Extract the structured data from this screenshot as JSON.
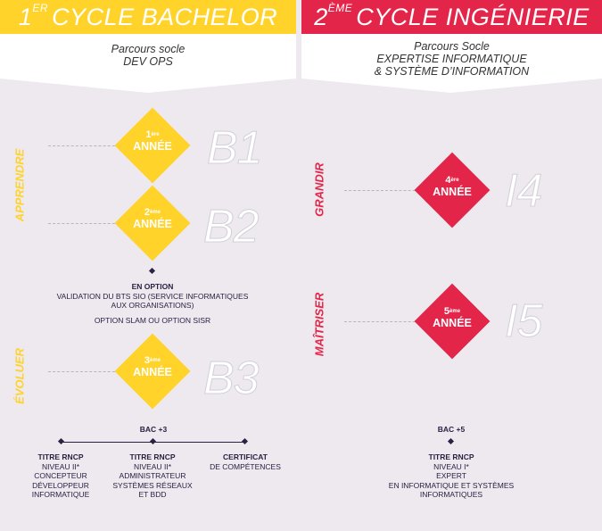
{
  "colors": {
    "yellow": "#ffd32a",
    "red": "#e4254a",
    "navy": "#2a2144",
    "bg": "#ede9ee"
  },
  "left": {
    "head_num": "1",
    "head_sup": "ER",
    "head_title": "CYCLE BACHELOR",
    "sub_l1": "Parcours socle",
    "sub_l2": "DEV OPS",
    "side_top": "APPRENDRE",
    "side_bottom": "ÉVOLUER",
    "years": [
      {
        "num": "1",
        "sup": "ère",
        "label": "ANNÉE",
        "big": "B1"
      },
      {
        "num": "2",
        "sup": "ème",
        "label": "ANNÉE",
        "big": "B2"
      },
      {
        "num": "3",
        "sup": "ème",
        "label": "ANNÉE",
        "big": "B3"
      }
    ],
    "option_title": "EN OPTION",
    "option_line1": "VALIDATION DU BTS SIO (SERVICE INFORMATIQUES",
    "option_line2": "AUX ORGANISATIONS)",
    "option_line3": "OPTION SLAM OU OPTION SISR",
    "bac": "BAC +3",
    "outcomes": [
      {
        "title": "TITRE RNCP",
        "l1": "NIVEAU II*",
        "l2": "CONCEPTEUR",
        "l3": "DÉVELOPPEUR",
        "l4": "INFORMATIQUE"
      },
      {
        "title": "TITRE RNCP",
        "l1": "NIVEAU II*",
        "l2": "ADMINISTRATEUR",
        "l3": "SYSTÈMES RÉSEAUX",
        "l4": "ET BDD"
      },
      {
        "title": "CERTIFICAT",
        "l1": "DE COMPÉTENCES",
        "l2": "",
        "l3": "",
        "l4": ""
      }
    ]
  },
  "right": {
    "head_num": "2",
    "head_sup": "ÈME",
    "head_title": "CYCLE INGÉNIERIE",
    "sub_l1": "Parcours Socle",
    "sub_l2": "EXPERTISE INFORMATIQUE",
    "sub_l3": "& SYSTÈME D’INFORMATION",
    "side_top": "GRANDIR",
    "side_bottom": "MAÎTRISER",
    "years": [
      {
        "num": "4",
        "sup": "ère",
        "label": "ANNÉE",
        "big": "I4"
      },
      {
        "num": "5",
        "sup": "ème",
        "label": "ANNÉE",
        "big": "I5"
      }
    ],
    "bac": "BAC +5",
    "outcome": {
      "title": "TITRE RNCP",
      "l1": "NIVEAU I*",
      "l2": "EXPERT",
      "l3": "EN INFORMATIQUE ET SYSTÈMES",
      "l4": "INFORMATIQUES"
    }
  }
}
